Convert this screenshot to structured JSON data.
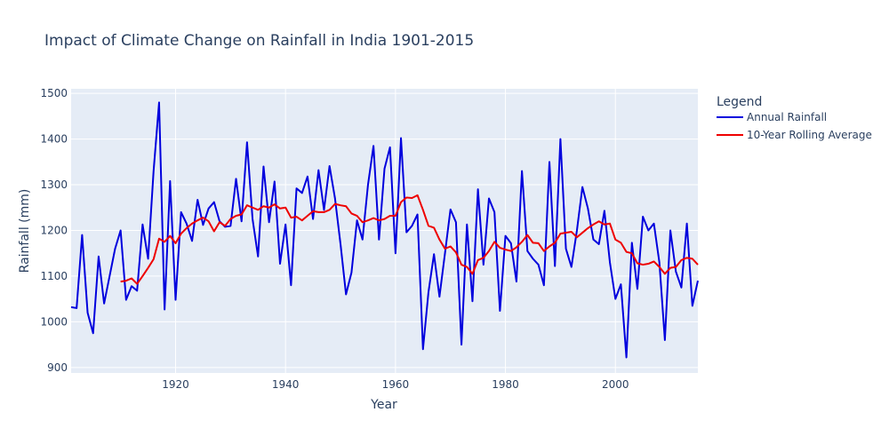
{
  "chart_data": {
    "type": "line",
    "title": "Impact of Climate Change on Rainfall in India 1901-2015",
    "x_label": "Year",
    "y_label": "Rainfall (mm)",
    "legend_title": "Legend",
    "legend_position": "right",
    "grid": true,
    "x": [
      1901,
      1902,
      1903,
      1904,
      1905,
      1906,
      1907,
      1908,
      1909,
      1910,
      1911,
      1912,
      1913,
      1914,
      1915,
      1916,
      1917,
      1918,
      1919,
      1920,
      1921,
      1922,
      1923,
      1924,
      1925,
      1926,
      1927,
      1928,
      1929,
      1930,
      1931,
      1932,
      1933,
      1934,
      1935,
      1936,
      1937,
      1938,
      1939,
      1940,
      1941,
      1942,
      1943,
      1944,
      1945,
      1946,
      1947,
      1948,
      1949,
      1950,
      1951,
      1952,
      1953,
      1954,
      1955,
      1956,
      1957,
      1958,
      1959,
      1960,
      1961,
      1962,
      1963,
      1964,
      1965,
      1966,
      1967,
      1968,
      1969,
      1970,
      1971,
      1972,
      1973,
      1974,
      1975,
      1976,
      1977,
      1978,
      1979,
      1980,
      1981,
      1982,
      1983,
      1984,
      1985,
      1986,
      1987,
      1988,
      1989,
      1990,
      1991,
      1992,
      1993,
      1994,
      1995,
      1996,
      1997,
      1998,
      1999,
      2000,
      2001,
      2002,
      2003,
      2004,
      2005,
      2006,
      2007,
      2008,
      2009,
      2010,
      2011,
      2012,
      2013,
      2014,
      2015
    ],
    "series": [
      {
        "name": "Annual Rainfall",
        "color": "#0000dd",
        "values": [
          1032,
          1030,
          1190,
          1020,
          975,
          1143,
          1040,
          1100,
          1160,
          1200,
          1048,
          1078,
          1068,
          1213,
          1138,
          1330,
          1480,
          1027,
          1308,
          1048,
          1240,
          1215,
          1177,
          1267,
          1212,
          1248,
          1262,
          1220,
          1208,
          1210,
          1313,
          1220,
          1393,
          1225,
          1143,
          1340,
          1218,
          1307,
          1127,
          1213,
          1080,
          1292,
          1282,
          1318,
          1225,
          1332,
          1245,
          1341,
          1270,
          1170,
          1060,
          1108,
          1222,
          1180,
          1300,
          1385,
          1180,
          1335,
          1382,
          1150,
          1402,
          1196,
          1210,
          1235,
          940,
          1065,
          1148,
          1055,
          1150,
          1246,
          1218,
          950,
          1213,
          1045,
          1290,
          1125,
          1270,
          1240,
          1024,
          1188,
          1172,
          1088,
          1330,
          1155,
          1138,
          1125,
          1080,
          1350,
          1122,
          1400,
          1160,
          1120,
          1200,
          1295,
          1248,
          1180,
          1170,
          1243,
          1130,
          1050,
          1082,
          922,
          1173,
          1072,
          1230,
          1200,
          1215,
          1130,
          960,
          1200,
          1110,
          1075,
          1215,
          1035,
          1090
        ]
      },
      {
        "name": "10-Year Rolling Average",
        "color": "#ee0000",
        "values": [
          null,
          null,
          null,
          null,
          null,
          null,
          null,
          null,
          null,
          1088,
          1090,
          1095,
          1083,
          1100,
          1118,
          1137,
          1182,
          1175,
          1188,
          1172,
          1193,
          1205,
          1215,
          1222,
          1228,
          1220,
          1198,
          1218,
          1210,
          1225,
          1232,
          1235,
          1255,
          1250,
          1245,
          1253,
          1250,
          1257,
          1248,
          1250,
          1228,
          1230,
          1222,
          1232,
          1242,
          1240,
          1240,
          1245,
          1258,
          1255,
          1253,
          1237,
          1232,
          1218,
          1222,
          1227,
          1222,
          1225,
          1232,
          1232,
          1262,
          1272,
          1271,
          1277,
          1245,
          1210,
          1206,
          1180,
          1160,
          1165,
          1152,
          1125,
          1120,
          1105,
          1135,
          1140,
          1155,
          1175,
          1162,
          1158,
          1155,
          1163,
          1175,
          1190,
          1173,
          1172,
          1155,
          1165,
          1173,
          1193,
          1195,
          1197,
          1185,
          1195,
          1205,
          1213,
          1220,
          1213,
          1215,
          1180,
          1173,
          1153,
          1150,
          1128,
          1125,
          1127,
          1132,
          1120,
          1105,
          1118,
          1120,
          1135,
          1140,
          1138,
          1125
        ]
      }
    ],
    "xlim": [
      1901,
      2015
    ],
    "xticks": [
      1920,
      1940,
      1960,
      1980,
      2000
    ],
    "ylim": [
      888,
      1510
    ],
    "yticks": [
      900,
      1000,
      1100,
      1200,
      1300,
      1400,
      1500
    ]
  }
}
